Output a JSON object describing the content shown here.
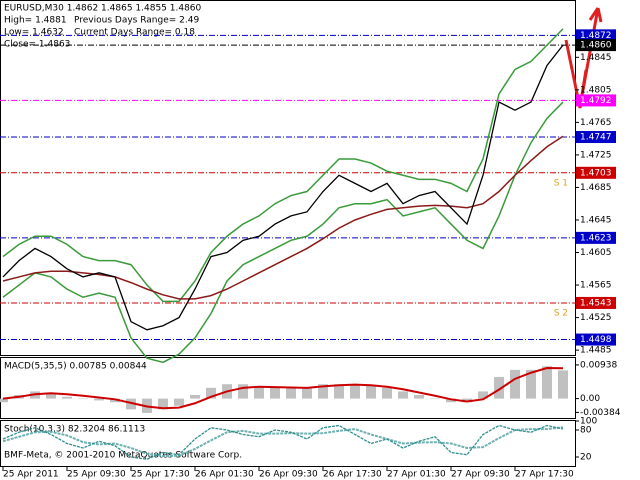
{
  "chart_data": [
    {
      "type": "line",
      "title": "EURUSD,M30  1.4862 1.4865 1.4855 1.4860",
      "info": [
        "High= 1.4881",
        "Low= 1.4632",
        "Close= 1.4863"
      ],
      "ranges": [
        "Previous Days Range= 2.49",
        "Current Days Range= 0.18"
      ],
      "time_labels": [
        "25 Apr 2011",
        "25 Apr 09:30",
        "25 Apr 17:30",
        "26 Apr 01:30",
        "26 Apr 09:30",
        "26 Apr 17:30",
        "27 Apr 01:30",
        "27 Apr 09:30",
        "27 Apr 17:30"
      ],
      "color": "#000000",
      "values": [
        1.4575,
        1.4595,
        1.461,
        1.46,
        1.4585,
        1.4575,
        1.458,
        1.4575,
        1.452,
        1.451,
        1.4515,
        1.4525,
        1.456,
        1.46,
        1.4605,
        1.462,
        1.4625,
        1.464,
        1.465,
        1.4655,
        1.468,
        1.47,
        1.469,
        1.468,
        1.469,
        1.4665,
        1.4675,
        1.468,
        1.466,
        1.464,
        1.47,
        1.479,
        1.478,
        1.479,
        1.4835,
        1.486
      ],
      "overlays": [
        {
          "color": "#3a9a3a",
          "values": [
            1.46,
            1.4615,
            1.4625,
            1.4625,
            1.4615,
            1.46,
            1.4595,
            1.4595,
            1.459,
            1.4565,
            1.4545,
            1.4545,
            1.457,
            1.4605,
            1.4625,
            1.464,
            1.465,
            1.4665,
            1.4675,
            1.468,
            1.47,
            1.472,
            1.472,
            1.4715,
            1.4705,
            1.47,
            1.4695,
            1.4695,
            1.469,
            1.468,
            1.472,
            1.48,
            1.483,
            1.484,
            1.486,
            1.488
          ]
        },
        {
          "color": "#3a9a3a",
          "values": [
            1.455,
            1.4565,
            1.458,
            1.4575,
            1.456,
            1.455,
            1.4555,
            1.455,
            1.45,
            1.4475,
            1.447,
            1.448,
            1.45,
            1.453,
            1.457,
            1.459,
            1.46,
            1.461,
            1.462,
            1.4625,
            1.464,
            1.466,
            1.4665,
            1.4665,
            1.467,
            1.465,
            1.4655,
            1.466,
            1.464,
            1.462,
            1.461,
            1.465,
            1.47,
            1.474,
            1.477,
            1.479
          ]
        },
        {
          "color": "#8b1a1a",
          "values": [
            1.457,
            1.4575,
            1.458,
            1.4582,
            1.4582,
            1.458,
            1.4578,
            1.4575,
            1.4568,
            1.456,
            1.4553,
            1.4548,
            1.4548,
            1.4552,
            1.456,
            1.457,
            1.458,
            1.459,
            1.46,
            1.461,
            1.4622,
            1.4635,
            1.4645,
            1.4652,
            1.4658,
            1.466,
            1.4662,
            1.4663,
            1.4662,
            1.466,
            1.4665,
            1.468,
            1.47,
            1.4718,
            1.4735,
            1.4748
          ]
        }
      ],
      "ylim": [
        1.4479,
        1.4913
      ],
      "yticks": [
        1.4845,
        1.4805,
        1.4765,
        1.4725,
        1.4685,
        1.4645,
        1.4605,
        1.4565,
        1.4525,
        1.4485
      ],
      "levels": [
        {
          "value": 1.4872,
          "color": "#0000c8"
        },
        {
          "value": 1.486,
          "label": "1.4860",
          "color": "#000000"
        },
        {
          "value": 1.4792,
          "color": "#ff00ff"
        },
        {
          "value": 1.4747,
          "color": "#0000c8"
        },
        {
          "value": 1.4703,
          "color": "#cc0000",
          "note": "S 1"
        },
        {
          "value": 1.4623,
          "color": "#0000c8"
        },
        {
          "value": 1.4543,
          "color": "#cc0000",
          "note": "S 2"
        },
        {
          "value": 1.4498,
          "color": "#0000c8"
        }
      ]
    },
    {
      "type": "histogram",
      "title": "MACD(5,35,5) 0.00785 0.00844",
      "color": "#c0c0c0",
      "values": [
        -0.001,
        0.001,
        0.002,
        0.0015,
        0.0005,
        0,
        -0.0005,
        -0.001,
        -0.003,
        -0.004,
        -0.003,
        -0.002,
        0.001,
        0.003,
        0.004,
        0.004,
        0.0035,
        0.003,
        0.003,
        0.003,
        0.004,
        0.004,
        0.004,
        0.0035,
        0.003,
        0.002,
        0.001,
        0,
        -0.001,
        -0.001,
        0.002,
        0.006,
        0.008,
        0.008,
        0.009,
        0.00785
      ],
      "overlays": [
        {
          "color": "#cc0000",
          "values": [
            0,
            0.0005,
            0.0012,
            0.0015,
            0.0012,
            0.0008,
            0.0003,
            -0.0002,
            -0.0012,
            -0.0022,
            -0.0027,
            -0.0025,
            -0.0013,
            0.0005,
            0.002,
            0.003,
            0.0033,
            0.0032,
            0.0031,
            0.003,
            0.0034,
            0.0037,
            0.0039,
            0.0037,
            0.0033,
            0.0026,
            0.0017,
            0.0008,
            -0.0002,
            -0.0008,
            -0.0002,
            0.0025,
            0.0055,
            0.0072,
            0.0085,
            0.00844
          ]
        }
      ],
      "ylim": [
        -0.0054,
        0.0113
      ],
      "yticks": [
        0.00938,
        {
          "value": 0,
          "label": "0.00"
        },
        -0.00384
      ]
    },
    {
      "type": "line",
      "title": "Stoch(10,3,3) 82.3204 86.1113",
      "note": "BMF-Meta, © 2001-2010 MetaQuotes Software Corp.",
      "color": "#2f8f8f",
      "values": [
        60,
        75,
        85,
        70,
        50,
        40,
        55,
        45,
        20,
        15,
        30,
        25,
        60,
        85,
        80,
        70,
        65,
        80,
        75,
        60,
        85,
        90,
        70,
        50,
        60,
        40,
        55,
        65,
        30,
        25,
        70,
        90,
        80,
        75,
        90,
        82.3204
      ],
      "overlays": [
        {
          "color": "#6fb0b0",
          "values": [
            55,
            65,
            75,
            76,
            68,
            53,
            48,
            50,
            40,
            27,
            22,
            23,
            38,
            57,
            75,
            78,
            72,
            72,
            73,
            72,
            73,
            78,
            82,
            70,
            60,
            50,
            52,
            53,
            50,
            40,
            42,
            62,
            80,
            82,
            82,
            86.1113
          ]
        }
      ],
      "ylim": [
        0,
        100
      ],
      "yticks": [
        100,
        80,
        20
      ]
    }
  ]
}
